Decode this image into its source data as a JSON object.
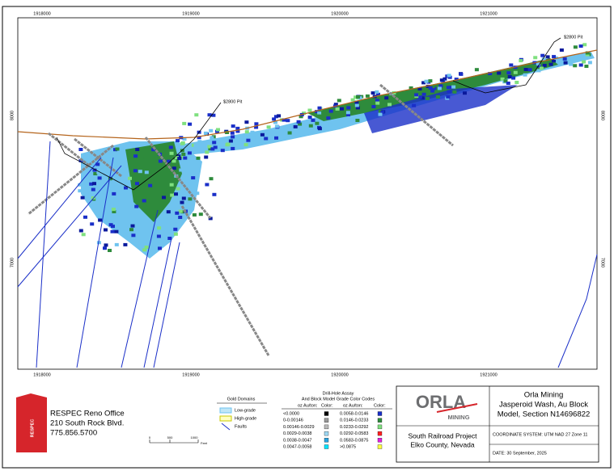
{
  "map": {
    "x_labels_top": [
      "1918000",
      "1919000",
      "1920000",
      "1921000"
    ],
    "x_labels_bottom": [
      "1918000",
      "1919000",
      "1920000",
      "1921000"
    ],
    "y_labels_left": [
      "8000",
      "7000"
    ],
    "y_labels_right": [
      "8000",
      "7000"
    ],
    "annotations": [
      "$2800 Pit",
      "$2800 Pit"
    ]
  },
  "office": {
    "logo": "RESPEC",
    "lines": [
      "RESPEC Reno Office",
      "210 South Rock Blvd.",
      "775.856.5700"
    ]
  },
  "gold_domains": {
    "title": "Gold Domains",
    "items": [
      "Low-grade",
      "High-grade",
      "Faults"
    ]
  },
  "scale": {
    "labels": [
      "0",
      "500",
      "1000"
    ],
    "unit": "Feet"
  },
  "grade_codes": {
    "title": [
      "Drill-Hole Assay",
      "And Block Model Grade Color Codes"
    ],
    "headers": [
      "oz Au/ton:",
      "Color:",
      "oz Au/ton:",
      "Color:"
    ],
    "rows": [
      [
        "<0.0000",
        "0.0058-0.0146"
      ],
      [
        "0-0.00146",
        "0.0146-0.0233"
      ],
      [
        "0.00146-0.0029",
        "0.0233-0.0292"
      ],
      [
        "0.0029-0.0038",
        "0.0292-0.0583"
      ],
      [
        "0.0038-0.0047",
        "0.0583-0.0875"
      ],
      [
        "0.0047-0.0058",
        ">0.0875"
      ]
    ]
  },
  "title_block": {
    "logo": [
      "ORLA",
      "MINING"
    ],
    "company": "Orla Mining",
    "title": [
      "Jasperoid Wash, Au Block",
      "Model, Section N14696822"
    ],
    "project": [
      "South Railroad Project",
      "Elko County, Nevada"
    ],
    "coordinates": "COORDINATE SYSTEM: UTM NAD 27 Zone 11",
    "date": "DATE: 30 September, 2025"
  }
}
